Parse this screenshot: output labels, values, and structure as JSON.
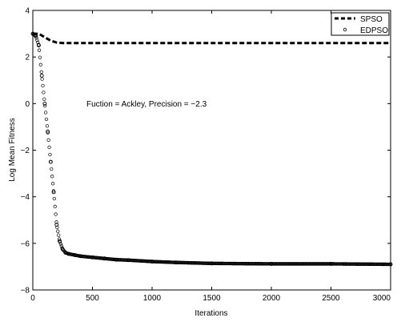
{
  "chart_data": {
    "type": "line",
    "xlabel": "Iterations",
    "ylabel": "Log Mean Fitness",
    "xlim": [
      0,
      3000
    ],
    "ylim": [
      -8,
      4
    ],
    "xticks": [
      0,
      500,
      1000,
      1500,
      2000,
      2500,
      3000
    ],
    "yticks": [
      -8,
      -6,
      -4,
      -2,
      0,
      2,
      4
    ],
    "xtick_labels": [
      "0",
      "500",
      "1000",
      "1500",
      "2000",
      "2500",
      "3000"
    ],
    "ytick_labels": [
      "−8",
      "−6",
      "−4",
      "−2",
      "0",
      "2",
      "4"
    ],
    "grid": false,
    "legend_position": "top-right",
    "annotation": "Fuction = Ackley, Precision = −2.3",
    "series": [
      {
        "name": "SPSO",
        "style": "dashed",
        "color": "#000000",
        "x": [
          0,
          50,
          100,
          150,
          200,
          250,
          300,
          500,
          1000,
          1500,
          2000,
          2500,
          3000
        ],
        "y": [
          3.0,
          3.0,
          2.85,
          2.7,
          2.62,
          2.6,
          2.6,
          2.6,
          2.6,
          2.6,
          2.6,
          2.6,
          2.6
        ]
      },
      {
        "name": "EDPSO",
        "style": "circle-markers",
        "color": "#000000",
        "x": [
          0,
          25,
          50,
          75,
          100,
          125,
          150,
          175,
          200,
          225,
          250,
          275,
          300,
          350,
          400,
          500,
          600,
          700,
          800,
          1000,
          1200,
          1500,
          2000,
          2500,
          3000
        ],
        "y": [
          3.0,
          2.9,
          2.5,
          1.2,
          0.0,
          -1.2,
          -2.5,
          -3.8,
          -5.2,
          -5.9,
          -6.25,
          -6.4,
          -6.45,
          -6.5,
          -6.55,
          -6.6,
          -6.65,
          -6.7,
          -6.72,
          -6.78,
          -6.82,
          -6.86,
          -6.88,
          -6.88,
          -6.9
        ]
      }
    ]
  }
}
